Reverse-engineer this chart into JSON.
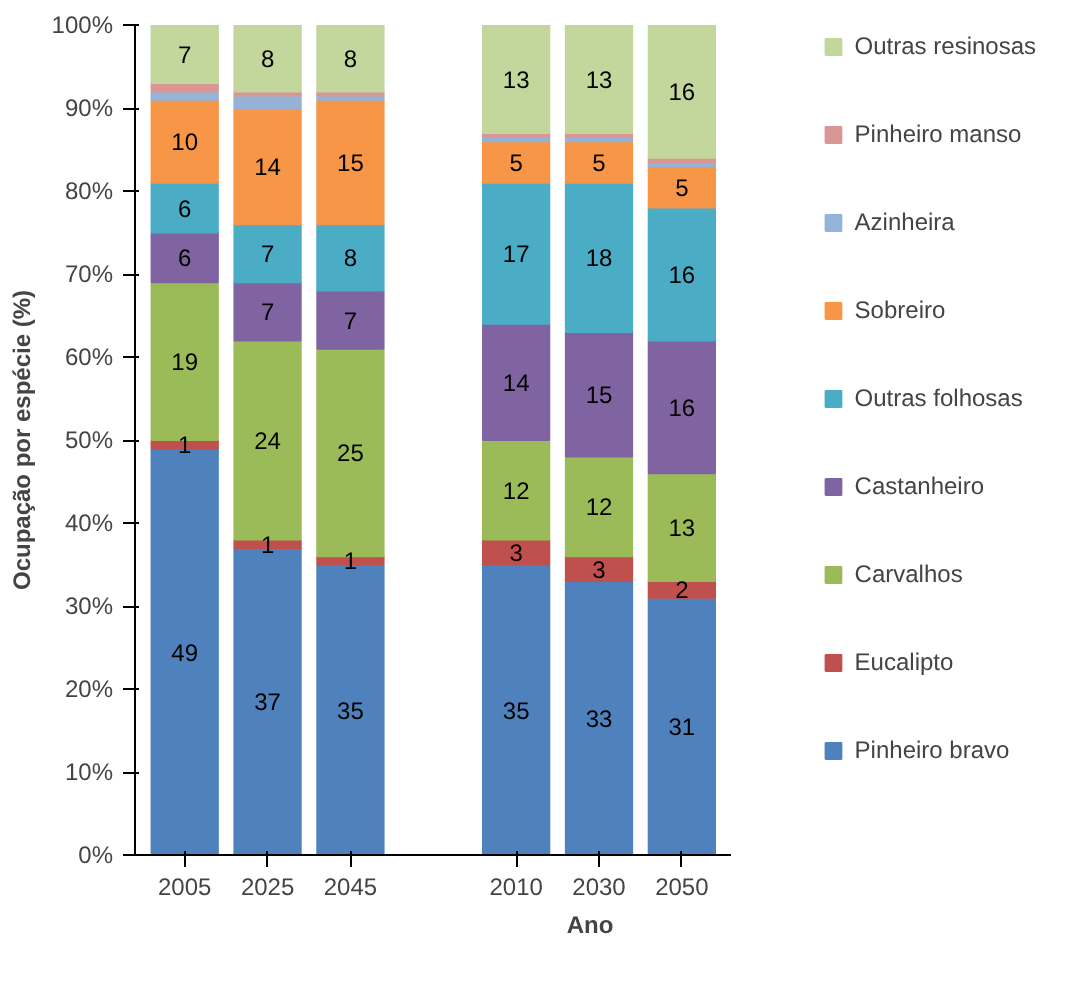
{
  "chart_data": {
    "type": "bar",
    "stacked": true,
    "xlabel": "Ano",
    "ylabel": "Ocupação por espécie (%)",
    "categories": [
      "2005",
      "2025",
      "2045",
      null,
      "2010",
      "2030",
      "2050"
    ],
    "ylim": [
      0,
      100
    ],
    "yticks": [
      {
        "value": 0,
        "label": "0%"
      },
      {
        "value": 10,
        "label": "10%"
      },
      {
        "value": 20,
        "label": "20%"
      },
      {
        "value": 30,
        "label": "30%"
      },
      {
        "value": 40,
        "label": "40%"
      },
      {
        "value": 50,
        "label": "50%"
      },
      {
        "value": 60,
        "label": "60%"
      },
      {
        "value": 70,
        "label": "70%"
      },
      {
        "value": 80,
        "label": "80%"
      },
      {
        "value": 90,
        "label": "90%"
      },
      {
        "value": 100,
        "label": "100%"
      }
    ],
    "grid": false,
    "legend": "right",
    "series": [
      {
        "name": "Pinheiro bravo",
        "color": "#4f81bd",
        "values": [
          49,
          37,
          35,
          null,
          35,
          33,
          31
        ],
        "value_labels": [
          "49",
          "37",
          "35",
          null,
          "35",
          "33",
          "31"
        ]
      },
      {
        "name": "Eucalipto",
        "color": "#c0504d",
        "values": [
          1,
          1,
          1,
          null,
          3,
          3,
          2
        ],
        "value_labels": [
          "1",
          "1",
          "1",
          null,
          "3",
          "3",
          "2"
        ]
      },
      {
        "name": "Carvalhos",
        "color": "#9bbb59",
        "values": [
          19,
          24,
          25,
          null,
          12,
          12,
          13
        ],
        "value_labels": [
          "19",
          "24",
          "25",
          null,
          "12",
          "12",
          "13"
        ]
      },
      {
        "name": "Castanheiro",
        "color": "#8064a2",
        "values": [
          6,
          7,
          7,
          null,
          14,
          15,
          16
        ],
        "value_labels": [
          "6",
          "7",
          "7",
          null,
          "14",
          "15",
          "16"
        ]
      },
      {
        "name": "Outras folhosas",
        "color": "#4bacc6",
        "values": [
          6,
          7,
          8,
          null,
          17,
          18,
          16
        ],
        "value_labels": [
          "6",
          "7",
          "8",
          null,
          "17",
          "18",
          "16"
        ]
      },
      {
        "name": "Sobreiro",
        "color": "#f79646",
        "values": [
          10,
          14,
          15,
          null,
          5,
          5,
          5
        ],
        "value_labels": [
          "10",
          "14",
          "15",
          null,
          "5",
          "5",
          "5"
        ]
      },
      {
        "name": "Azinheira",
        "color": "#95b3d7",
        "values": [
          1,
          1.5,
          0.5,
          null,
          0.5,
          0.5,
          0.5
        ],
        "value_labels": [
          null,
          null,
          null,
          null,
          null,
          null,
          null
        ]
      },
      {
        "name": "Pinheiro manso",
        "color": "#d99694",
        "values": [
          1,
          0.5,
          0.5,
          null,
          0.5,
          0.5,
          0.5
        ],
        "value_labels": [
          null,
          null,
          null,
          null,
          null,
          null,
          null
        ]
      },
      {
        "name": "Outras resinosas",
        "color": "#c3d69b",
        "values": [
          7,
          8,
          8,
          null,
          13,
          13,
          16
        ],
        "value_labels": [
          "7",
          "8",
          "8",
          null,
          "13",
          "13",
          "16"
        ]
      }
    ]
  }
}
